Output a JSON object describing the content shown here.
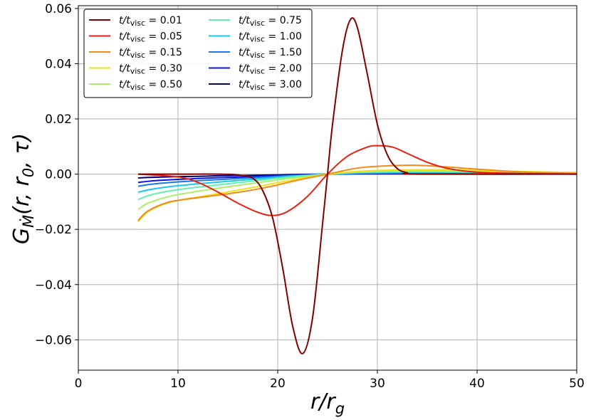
{
  "chart_data": {
    "type": "line",
    "title": "",
    "xlabel": "r/r_g",
    "ylabel": "G_Ṁ(r, r_0, τ)",
    "xlim": [
      0,
      50
    ],
    "ylim": [
      -0.071,
      0.061
    ],
    "x_ticks": [
      0,
      10,
      20,
      30,
      40,
      50
    ],
    "y_ticks": [
      -0.06,
      -0.04,
      -0.02,
      0.0,
      0.02,
      0.04,
      0.06
    ],
    "x_tick_labels": [
      "0",
      "10",
      "20",
      "30",
      "40",
      "50"
    ],
    "y_tick_labels": [
      "−0.06",
      "−0.04",
      "−0.02",
      "0.00",
      "0.02",
      "0.04",
      "0.06"
    ],
    "grid": true,
    "legend_position": "top-left",
    "legend_columns": 2,
    "series": [
      {
        "name": "t/t_visc = 0.01",
        "label_prefix": "t/t",
        "label_sub": "visc",
        "label_value": " = 0.01",
        "color": "#800000",
        "points": [
          [
            6,
            0.0
          ],
          [
            10,
            0.0
          ],
          [
            14,
            0.0
          ],
          [
            16,
            -0.0003
          ],
          [
            17.5,
            -0.0015
          ],
          [
            18.5,
            -0.006
          ],
          [
            19.5,
            -0.016
          ],
          [
            20.5,
            -0.034
          ],
          [
            21.5,
            -0.055
          ],
          [
            22.5,
            -0.065
          ],
          [
            23.5,
            -0.052
          ],
          [
            24.5,
            -0.018
          ],
          [
            25,
            0.0
          ],
          [
            25.5,
            0.018
          ],
          [
            26.5,
            0.045
          ],
          [
            27.3,
            0.056
          ],
          [
            28,
            0.053
          ],
          [
            29,
            0.036
          ],
          [
            30,
            0.018
          ],
          [
            31,
            0.007
          ],
          [
            32,
            0.002
          ],
          [
            33,
            0.0005
          ],
          [
            34,
            0.0
          ],
          [
            50,
            0.0
          ]
        ]
      },
      {
        "name": "t/t_visc = 0.05",
        "label_prefix": "t/t",
        "label_sub": "visc",
        "label_value": " = 0.05",
        "color": "#e82010",
        "points": [
          [
            6,
            0.0
          ],
          [
            10,
            -0.001
          ],
          [
            12,
            -0.003
          ],
          [
            14,
            -0.0065
          ],
          [
            16,
            -0.0105
          ],
          [
            18,
            -0.0138
          ],
          [
            19.5,
            -0.015
          ],
          [
            21,
            -0.0135
          ],
          [
            23,
            -0.008
          ],
          [
            25,
            0.0
          ],
          [
            27,
            0.0065
          ],
          [
            29,
            0.0098
          ],
          [
            30,
            0.0103
          ],
          [
            31.5,
            0.0098
          ],
          [
            33,
            0.0075
          ],
          [
            35,
            0.0043
          ],
          [
            37,
            0.0021
          ],
          [
            40,
            0.0007
          ],
          [
            45,
            0.0002
          ],
          [
            50,
            0.0
          ]
        ]
      },
      {
        "name": "t/t_visc = 0.15",
        "label_prefix": "t/t",
        "label_sub": "visc",
        "label_value": " = 0.15",
        "color": "#f28a18",
        "points": [
          [
            6,
            -0.0168
          ],
          [
            6.5,
            -0.0148
          ],
          [
            7,
            -0.0133
          ],
          [
            8,
            -0.0115
          ],
          [
            9,
            -0.0102
          ],
          [
            10,
            -0.0095
          ],
          [
            12,
            -0.0085
          ],
          [
            14,
            -0.0076
          ],
          [
            16,
            -0.0066
          ],
          [
            18,
            -0.0054
          ],
          [
            20,
            -0.0039
          ],
          [
            22,
            -0.0022
          ],
          [
            25,
            0.0
          ],
          [
            28,
            0.0022
          ],
          [
            31,
            0.003
          ],
          [
            34,
            0.0032
          ],
          [
            37,
            0.0026
          ],
          [
            40,
            0.0018
          ],
          [
            45,
            0.0007
          ],
          [
            50,
            0.0003
          ]
        ]
      },
      {
        "name": "t/t_visc = 0.30",
        "label_prefix": "t/t",
        "label_sub": "visc",
        "label_value": " = 0.30",
        "color": "#f2e01c",
        "points": [
          [
            6,
            -0.0172
          ],
          [
            6.5,
            -0.0152
          ],
          [
            7,
            -0.0136
          ],
          [
            8,
            -0.0117
          ],
          [
            9,
            -0.0104
          ],
          [
            10,
            -0.0095
          ],
          [
            12,
            -0.0083
          ],
          [
            14,
            -0.0071
          ],
          [
            16,
            -0.0058
          ],
          [
            18,
            -0.0045
          ],
          [
            20,
            -0.0031
          ],
          [
            22,
            -0.0018
          ],
          [
            25,
            0.0
          ],
          [
            28,
            0.001
          ],
          [
            32,
            0.0015
          ],
          [
            36,
            0.0016
          ],
          [
            40,
            0.0013
          ],
          [
            45,
            0.0009
          ],
          [
            50,
            0.0006
          ]
        ]
      },
      {
        "name": "t/t_visc = 0.50",
        "label_prefix": "t/t",
        "label_sub": "visc",
        "label_value": " = 0.50",
        "color": "#a8f068",
        "points": [
          [
            6,
            -0.0128
          ],
          [
            6.5,
            -0.0115
          ],
          [
            7,
            -0.0105
          ],
          [
            8,
            -0.0092
          ],
          [
            9,
            -0.0082
          ],
          [
            10,
            -0.0074
          ],
          [
            12,
            -0.0062
          ],
          [
            14,
            -0.0051
          ],
          [
            16,
            -0.0041
          ],
          [
            18,
            -0.0031
          ],
          [
            20,
            -0.0021
          ],
          [
            22,
            -0.0012
          ],
          [
            25,
            0.0
          ],
          [
            28,
            0.0008
          ],
          [
            32,
            0.0011
          ],
          [
            36,
            0.0012
          ],
          [
            40,
            0.001
          ],
          [
            45,
            0.0008
          ],
          [
            50,
            0.0005
          ]
        ]
      },
      {
        "name": "t/t_visc = 0.75",
        "label_prefix": "t/t",
        "label_sub": "visc",
        "label_value": " = 0.75",
        "color": "#60f0b0",
        "points": [
          [
            6,
            -0.0092
          ],
          [
            7,
            -0.0078
          ],
          [
            8,
            -0.0069
          ],
          [
            9,
            -0.0062
          ],
          [
            10,
            -0.0056
          ],
          [
            12,
            -0.0047
          ],
          [
            14,
            -0.0039
          ],
          [
            16,
            -0.0031
          ],
          [
            18,
            -0.0023
          ],
          [
            20,
            -0.0015
          ],
          [
            22,
            -0.0008
          ],
          [
            25,
            0.0
          ],
          [
            28,
            0.0006
          ],
          [
            32,
            0.0009
          ],
          [
            36,
            0.0009
          ],
          [
            40,
            0.0008
          ],
          [
            45,
            0.0006
          ],
          [
            50,
            0.0004
          ]
        ]
      },
      {
        "name": "t/t_visc = 1.00",
        "label_prefix": "t/t",
        "label_sub": "visc",
        "label_value": " = 1.00",
        "color": "#18c8e8",
        "points": [
          [
            6,
            -0.0066
          ],
          [
            7,
            -0.0057
          ],
          [
            8,
            -0.0051
          ],
          [
            9,
            -0.0046
          ],
          [
            10,
            -0.0042
          ],
          [
            12,
            -0.0035
          ],
          [
            14,
            -0.0029
          ],
          [
            16,
            -0.0023
          ],
          [
            18,
            -0.0017
          ],
          [
            20,
            -0.0011
          ],
          [
            22,
            -0.0006
          ],
          [
            25,
            0.0
          ],
          [
            28,
            0.0004
          ],
          [
            32,
            0.0006
          ],
          [
            36,
            0.0007
          ],
          [
            40,
            0.0006
          ],
          [
            45,
            0.0005
          ],
          [
            50,
            0.0003
          ]
        ]
      },
      {
        "name": "t/t_visc = 1.50",
        "label_prefix": "t/t",
        "label_sub": "visc",
        "label_value": " = 1.50",
        "color": "#1a78f2",
        "points": [
          [
            6,
            -0.0044
          ],
          [
            7,
            -0.0038
          ],
          [
            8,
            -0.0034
          ],
          [
            9,
            -0.0031
          ],
          [
            10,
            -0.0028
          ],
          [
            12,
            -0.0024
          ],
          [
            14,
            -0.002
          ],
          [
            16,
            -0.0016
          ],
          [
            18,
            -0.0012
          ],
          [
            20,
            -0.0008
          ],
          [
            22,
            -0.0004
          ],
          [
            25,
            0.0
          ],
          [
            28,
            0.0003
          ],
          [
            32,
            0.0004
          ],
          [
            36,
            0.0004
          ],
          [
            40,
            0.0004
          ],
          [
            45,
            0.0003
          ],
          [
            50,
            0.0002
          ]
        ]
      },
      {
        "name": "t/t_visc = 2.00",
        "label_prefix": "t/t",
        "label_sub": "visc",
        "label_value": " = 2.00",
        "color": "#0a14e8",
        "points": [
          [
            6,
            -0.003
          ],
          [
            7,
            -0.0026
          ],
          [
            8,
            -0.0023
          ],
          [
            9,
            -0.0021
          ],
          [
            10,
            -0.0019
          ],
          [
            12,
            -0.0016
          ],
          [
            14,
            -0.0013
          ],
          [
            16,
            -0.0011
          ],
          [
            18,
            -0.0008
          ],
          [
            20,
            -0.0005
          ],
          [
            22,
            -0.0003
          ],
          [
            25,
            0.0
          ],
          [
            28,
            0.0002
          ],
          [
            32,
            0.0003
          ],
          [
            36,
            0.0003
          ],
          [
            40,
            0.0003
          ],
          [
            45,
            0.0002
          ],
          [
            50,
            0.0002
          ]
        ]
      },
      {
        "name": "t/t_visc = 3.00",
        "label_prefix": "t/t",
        "label_sub": "visc",
        "label_value": " = 3.00",
        "color": "#00007a",
        "points": [
          [
            6,
            -0.0014
          ],
          [
            7,
            -0.0012
          ],
          [
            8,
            -0.0011
          ],
          [
            9,
            -0.001
          ],
          [
            10,
            -0.0009
          ],
          [
            12,
            -0.0008
          ],
          [
            14,
            -0.0006
          ],
          [
            16,
            -0.0005
          ],
          [
            18,
            -0.0004
          ],
          [
            20,
            -0.0003
          ],
          [
            22,
            -0.0001
          ],
          [
            25,
            0.0
          ],
          [
            28,
            0.0001
          ],
          [
            32,
            0.0001
          ],
          [
            36,
            0.0001
          ],
          [
            40,
            0.0001
          ],
          [
            45,
            0.0001
          ],
          [
            50,
            0.0001
          ]
        ]
      }
    ]
  }
}
